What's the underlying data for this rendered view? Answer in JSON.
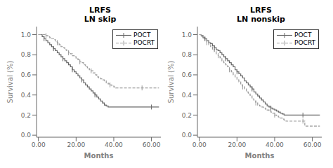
{
  "chart_data": [
    {
      "type": "line",
      "title": "LRFS",
      "subtitle": "LN skip",
      "x_label": "Months",
      "y_label": "Survival (%)",
      "x": [
        0,
        1,
        2,
        3,
        4,
        5,
        6,
        7,
        8,
        9,
        10,
        11,
        12,
        13,
        14,
        15,
        16,
        17,
        18,
        19,
        20,
        21,
        22,
        23,
        24,
        25,
        26,
        27,
        28,
        29,
        30,
        31,
        32,
        33,
        34,
        35,
        36,
        37,
        38,
        39,
        40,
        41,
        42,
        43,
        44,
        45,
        46,
        47,
        48,
        49,
        50,
        51,
        52,
        53,
        54,
        55,
        56,
        57,
        58,
        59,
        60,
        61,
        62,
        63,
        64
      ],
      "series": [
        {
          "name": "POCT",
          "color": "#666666",
          "line_style": "solid",
          "marker": "|",
          "censor_x": [
            3,
            8,
            13,
            18,
            23,
            30,
            60
          ],
          "values": [
            1.0,
            1.0,
            0.98,
            0.96,
            0.94,
            0.92,
            0.9,
            0.88,
            0.86,
            0.84,
            0.82,
            0.8,
            0.78,
            0.76,
            0.74,
            0.72,
            0.7,
            0.68,
            0.65,
            0.63,
            0.61,
            0.59,
            0.57,
            0.55,
            0.52,
            0.5,
            0.48,
            0.46,
            0.44,
            0.42,
            0.4,
            0.38,
            0.36,
            0.34,
            0.32,
            0.3,
            0.29,
            0.28,
            0.28,
            0.28,
            0.28,
            0.28,
            0.28,
            0.28,
            0.28,
            0.28,
            0.28,
            0.28,
            0.28,
            0.28,
            0.28,
            0.28,
            0.28,
            0.28,
            0.28,
            0.28,
            0.28,
            0.28,
            0.28,
            0.28,
            0.28,
            0.28,
            0.28,
            0.28,
            0.28
          ]
        },
        {
          "name": "POCRT",
          "color": "#999999",
          "line_style": "dashed",
          "marker": "|",
          "censor_x": [
            4,
            10,
            16,
            22,
            28,
            38,
            55
          ],
          "values": [
            1.0,
            1.0,
            1.0,
            1.0,
            0.99,
            0.98,
            0.97,
            0.96,
            0.95,
            0.93,
            0.92,
            0.9,
            0.88,
            0.87,
            0.85,
            0.84,
            0.82,
            0.81,
            0.79,
            0.78,
            0.76,
            0.75,
            0.73,
            0.72,
            0.7,
            0.68,
            0.67,
            0.65,
            0.64,
            0.62,
            0.6,
            0.58,
            0.57,
            0.56,
            0.55,
            0.54,
            0.52,
            0.51,
            0.5,
            0.49,
            0.48,
            0.47,
            0.47,
            0.47,
            0.47,
            0.47,
            0.47,
            0.47,
            0.47,
            0.47,
            0.47,
            0.47,
            0.47,
            0.47,
            0.47,
            0.47,
            0.47,
            0.47,
            0.47,
            0.47,
            0.47,
            0.47,
            0.47,
            0.47,
            0.47
          ]
        }
      ],
      "xlim": [
        -1,
        65
      ],
      "ylim": [
        -0.02,
        1.08
      ],
      "xticks": [
        {
          "value": 0,
          "label": "0.00"
        },
        {
          "value": 20,
          "label": "20.00"
        },
        {
          "value": 40,
          "label": "40.00"
        },
        {
          "value": 60,
          "label": "60.00"
        }
      ],
      "yticks": [
        {
          "value": 0.0,
          "label": "0.0"
        },
        {
          "value": 0.2,
          "label": "0.2"
        },
        {
          "value": 0.4,
          "label": "0.4"
        },
        {
          "value": 0.6,
          "label": "0.6"
        },
        {
          "value": 0.8,
          "label": "0.8"
        },
        {
          "value": 1.0,
          "label": "1.0"
        }
      ],
      "legend": "upper right"
    },
    {
      "type": "line",
      "title": "LRFS",
      "subtitle": "LN nonskip",
      "x_label": "Months",
      "y_label": "Survival (%)",
      "x": [
        0,
        1,
        2,
        3,
        4,
        5,
        6,
        7,
        8,
        9,
        10,
        11,
        12,
        13,
        14,
        15,
        16,
        17,
        18,
        19,
        20,
        21,
        22,
        23,
        24,
        25,
        26,
        27,
        28,
        29,
        30,
        31,
        32,
        33,
        34,
        35,
        36,
        37,
        38,
        39,
        40,
        41,
        42,
        43,
        44,
        45,
        46,
        47,
        48,
        49,
        50,
        51,
        52,
        53,
        54,
        55,
        56,
        57,
        58,
        59,
        60,
        61,
        62,
        63,
        64
      ],
      "series": [
        {
          "name": "POCT",
          "color": "#666666",
          "line_style": "solid",
          "marker": "|",
          "censor_x": [
            3,
            8,
            14,
            20,
            28,
            38,
            55
          ],
          "values": [
            1.0,
            0.99,
            0.97,
            0.96,
            0.94,
            0.92,
            0.91,
            0.89,
            0.87,
            0.85,
            0.84,
            0.82,
            0.8,
            0.78,
            0.76,
            0.74,
            0.72,
            0.7,
            0.68,
            0.65,
            0.63,
            0.61,
            0.59,
            0.57,
            0.54,
            0.52,
            0.5,
            0.48,
            0.46,
            0.43,
            0.41,
            0.39,
            0.37,
            0.35,
            0.33,
            0.31,
            0.29,
            0.28,
            0.27,
            0.26,
            0.25,
            0.24,
            0.23,
            0.22,
            0.21,
            0.2,
            0.2,
            0.2,
            0.2,
            0.2,
            0.2,
            0.2,
            0.2,
            0.2,
            0.2,
            0.2,
            0.2,
            0.2,
            0.2,
            0.2,
            0.2,
            0.2,
            0.2,
            0.2,
            0.2
          ]
        },
        {
          "name": "POCRT",
          "color": "#999999",
          "line_style": "dashed",
          "marker": "|",
          "censor_x": [
            4,
            10,
            16,
            23,
            30,
            40,
            55
          ],
          "values": [
            1.0,
            0.98,
            0.96,
            0.94,
            0.92,
            0.9,
            0.88,
            0.85,
            0.83,
            0.81,
            0.79,
            0.77,
            0.74,
            0.72,
            0.7,
            0.68,
            0.65,
            0.63,
            0.6,
            0.58,
            0.55,
            0.53,
            0.5,
            0.48,
            0.46,
            0.43,
            0.41,
            0.39,
            0.36,
            0.34,
            0.32,
            0.3,
            0.29,
            0.28,
            0.27,
            0.26,
            0.25,
            0.24,
            0.23,
            0.22,
            0.2,
            0.19,
            0.18,
            0.17,
            0.16,
            0.15,
            0.14,
            0.14,
            0.14,
            0.14,
            0.14,
            0.14,
            0.14,
            0.14,
            0.14,
            0.14,
            0.09,
            0.09,
            0.09,
            0.09,
            0.09,
            0.09,
            0.09,
            0.09,
            0.09
          ]
        }
      ],
      "xlim": [
        -1,
        65
      ],
      "ylim": [
        -0.02,
        1.08
      ],
      "xticks": [
        {
          "value": 0,
          "label": "0.00"
        },
        {
          "value": 20,
          "label": "20.00"
        },
        {
          "value": 40,
          "label": "40.00"
        },
        {
          "value": 60,
          "label": "60.00"
        }
      ],
      "yticks": [
        {
          "value": 0.0,
          "label": "0.0"
        },
        {
          "value": 0.2,
          "label": "0.2"
        },
        {
          "value": 0.4,
          "label": "0.4"
        },
        {
          "value": 0.6,
          "label": "0.6"
        },
        {
          "value": 0.8,
          "label": "0.8"
        },
        {
          "value": 1.0,
          "label": "1.0"
        }
      ],
      "legend": "upper right"
    }
  ]
}
